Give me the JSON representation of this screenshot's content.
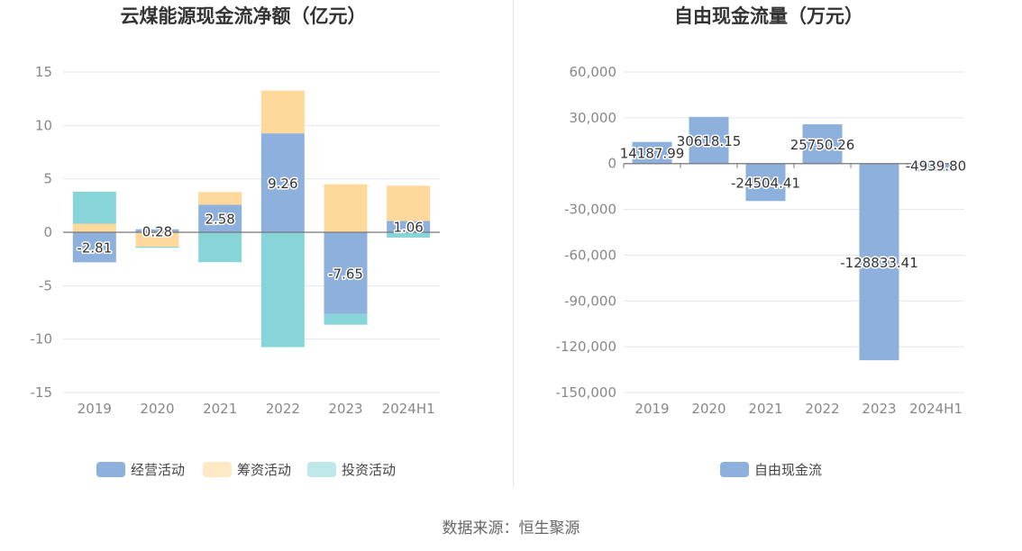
{
  "source": "数据来源：恒生聚源",
  "chart_data": [
    {
      "type": "bar",
      "stacked": true,
      "title": "云煤能源现金流净额（亿元）",
      "categories": [
        "2019",
        "2020",
        "2021",
        "2022",
        "2023",
        "2024H1"
      ],
      "ylim": [
        -15,
        15
      ],
      "yticks": [
        15,
        10,
        5,
        0,
        -5,
        -10,
        -15
      ],
      "grid": true,
      "legend_position": "bottom",
      "series": [
        {
          "name": "经营活动",
          "color": "#8eb0dc",
          "values": [
            -2.81,
            0.28,
            2.58,
            9.26,
            -7.65,
            1.06
          ],
          "labels": [
            "-2.81",
            "0.28",
            "2.58",
            "9.26",
            "-7.65",
            "1.06"
          ]
        },
        {
          "name": "筹资活动",
          "color": "#ffd89c",
          "values": [
            0.8,
            -1.35,
            1.2,
            4.0,
            4.5,
            3.3
          ]
        },
        {
          "name": "投资活动",
          "color": "#88d5d9",
          "values": [
            3.0,
            -0.1,
            -2.8,
            -10.75,
            -1.0,
            -0.5
          ]
        }
      ],
      "legend_colors": [
        "#8eb0dc",
        "#ffe8c4",
        "#bfe8ea"
      ]
    },
    {
      "type": "bar",
      "title": "自由现金流量（万元）",
      "categories": [
        "2019",
        "2020",
        "2021",
        "2022",
        "2023",
        "2024H1"
      ],
      "ylim": [
        -150000,
        60000
      ],
      "yticks": [
        "60,000",
        "30,000",
        "0",
        "-30,000",
        "-60,000",
        "-90,000",
        "-120,000",
        "-150,000"
      ],
      "grid": true,
      "legend_position": "bottom",
      "series": [
        {
          "name": "自由现金流",
          "color": "#8eb0dc",
          "values": [
            14187.99,
            30618.15,
            -24504.41,
            25750.26,
            -128833.41,
            -4939.8
          ],
          "labels": [
            "14187.99",
            "30618.15",
            "-24504.41",
            "25750.26",
            "-128833.41",
            "-4939.80"
          ]
        }
      ]
    }
  ]
}
